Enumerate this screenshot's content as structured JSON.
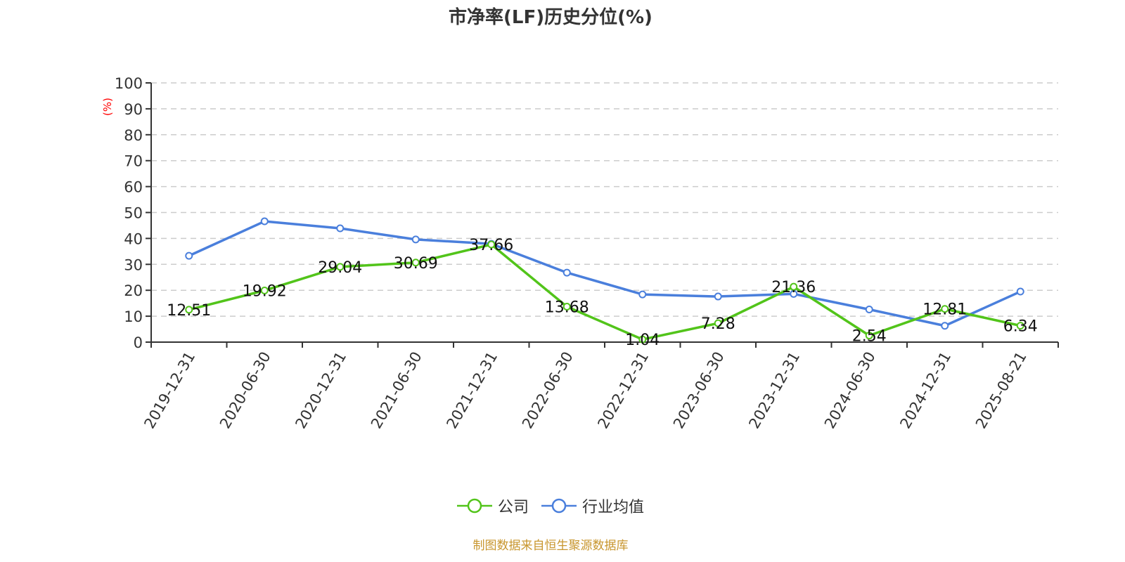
{
  "title": "市净率(LF)历史分位(%)",
  "source_note": "制图数据来自恒生聚源数据库",
  "colors": {
    "company": "#52c41a",
    "industry": "#4a7fdc",
    "axis": "#333333",
    "grid": "#cccccc",
    "unit_label": "#ff0000",
    "source": "#c8962e"
  },
  "legend": [
    {
      "name": "公司",
      "color": "#52c41a"
    },
    {
      "name": "行业均值",
      "color": "#4a7fdc"
    }
  ],
  "chart_data": {
    "type": "line",
    "title": "市净率(LF)历史分位(%)",
    "xlabel": "",
    "ylabel": "(%)",
    "ylim": [
      0,
      100
    ],
    "yticks": [
      0,
      10,
      20,
      30,
      40,
      50,
      60,
      70,
      80,
      90,
      100
    ],
    "grid": true,
    "legend_position": "bottom",
    "categories": [
      "2019-12-31",
      "2020-06-30",
      "2020-12-31",
      "2021-06-30",
      "2021-12-31",
      "2022-06-30",
      "2022-12-31",
      "2023-06-30",
      "2023-12-31",
      "2024-06-30",
      "2024-12-31",
      "2025-08-21"
    ],
    "series": [
      {
        "name": "公司",
        "values": [
          12.51,
          19.92,
          29.04,
          30.69,
          37.66,
          13.68,
          1.04,
          7.28,
          21.36,
          2.54,
          12.81,
          6.34
        ],
        "labels_shown": true
      },
      {
        "name": "行业均值",
        "values": [
          33.3,
          46.6,
          43.9,
          39.6,
          37.9,
          26.8,
          18.4,
          17.6,
          18.6,
          12.6,
          6.3,
          19.5
        ],
        "labels_shown": false
      }
    ]
  }
}
